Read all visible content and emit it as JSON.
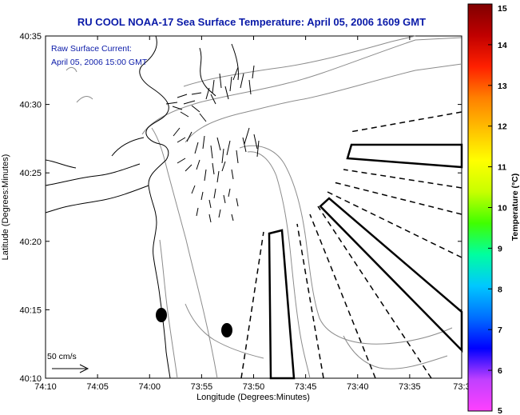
{
  "title": "RU COOL  NOAA-17  Sea Surface Temperature:  April 05, 2006 1609 GMT",
  "annotation": {
    "line1": "Raw Surface Current:",
    "line2": "April 05, 2006 15:00 GMT"
  },
  "xaxis": {
    "label": "Longitude (Degrees:Minutes)",
    "ticks": [
      "74:10",
      "74:05",
      "74:00",
      "73:55",
      "73:50",
      "73:45",
      "73:40",
      "73:35",
      "73:3"
    ]
  },
  "yaxis": {
    "label": "Latitude (Degrees:Minutes)",
    "ticks": [
      "40:35",
      "40:30",
      "40:25",
      "40:20",
      "40:15",
      "40:10"
    ]
  },
  "colorbar": {
    "label": "Temperature (°C)",
    "ticks": [
      "15",
      "14",
      "13",
      "12",
      "11",
      "10",
      "9",
      "8",
      "7",
      "6",
      "5"
    ],
    "range": [
      5,
      15
    ],
    "colors": [
      "#ff40ff",
      "#c040ff",
      "#0000ff",
      "#0070ff",
      "#00c8ff",
      "#00ffa0",
      "#40ff00",
      "#c8ff00",
      "#ffff00",
      "#ffc000",
      "#ff8000",
      "#ff2000",
      "#c00000",
      "#800000"
    ]
  },
  "scale_label": "50 cm/s",
  "colors": {
    "title": "#0a1aa8",
    "annotation": "#0a1aa8",
    "contour": "#8c8c8c",
    "coast": "#000000"
  }
}
